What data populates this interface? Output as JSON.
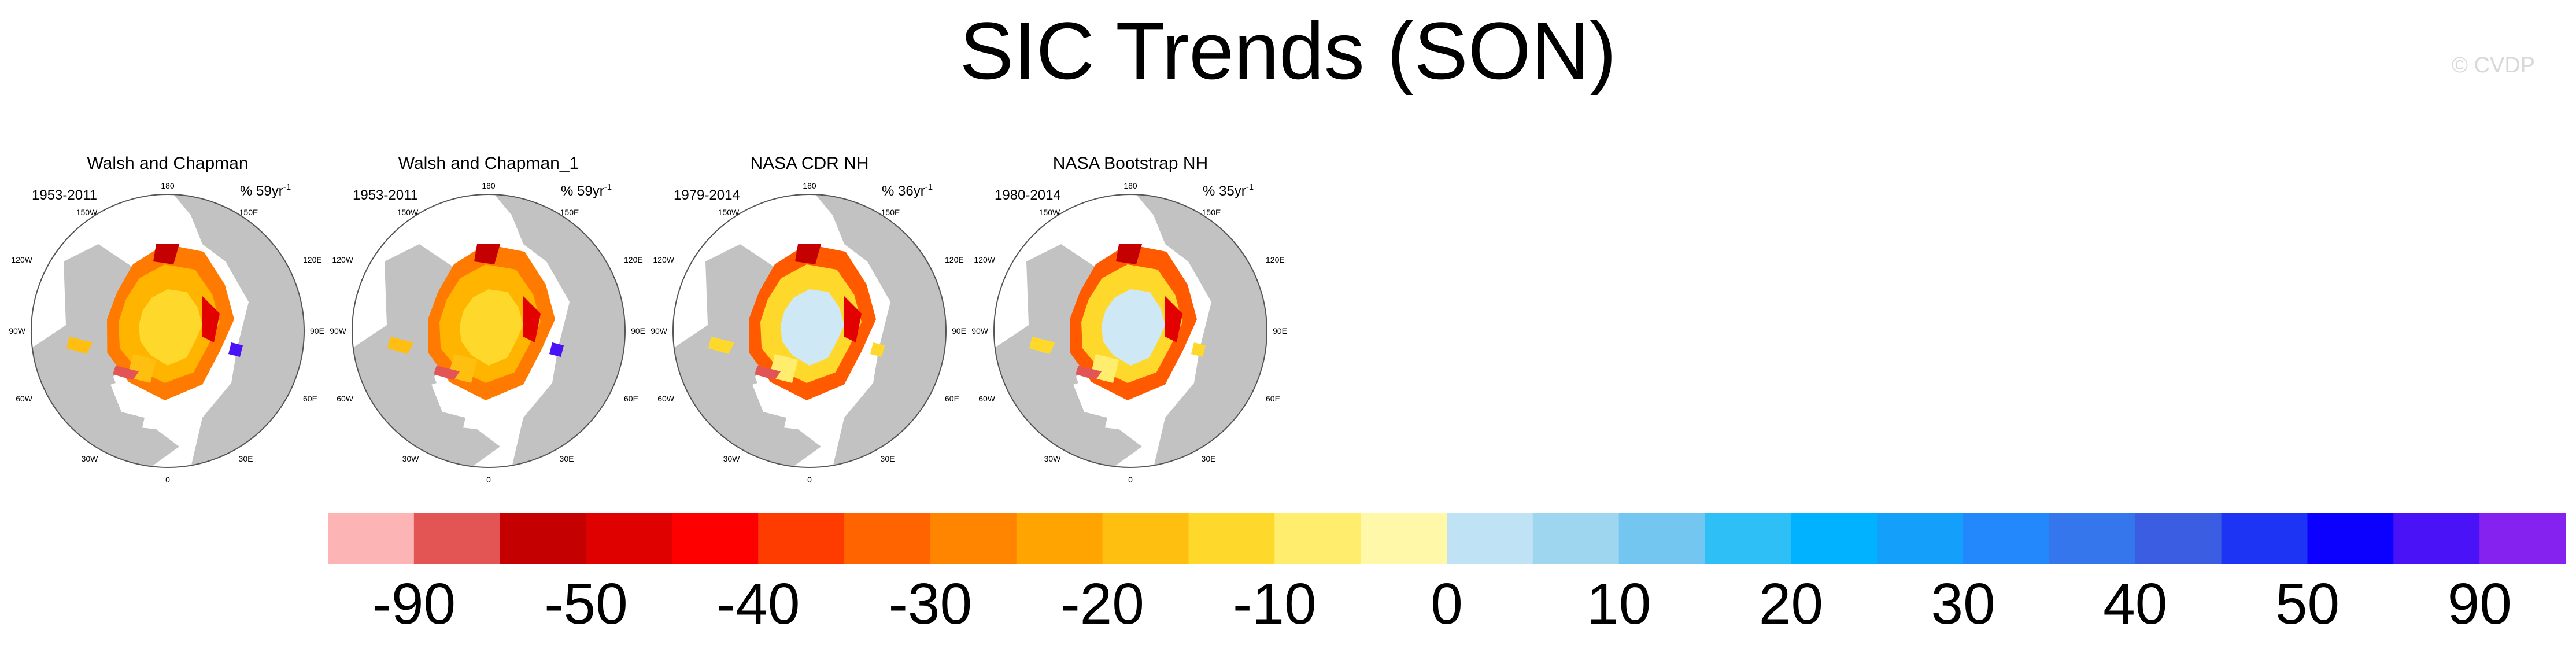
{
  "title": "SIC Trends (SON)",
  "credit": "© CVDP",
  "chart_data": [
    {
      "type": "heatmap",
      "title": "Walsh and Chapman",
      "period": "1953-2011",
      "units": "% 59yr",
      "units_exp": "-1"
    },
    {
      "type": "heatmap",
      "title": "Walsh and Chapman_1",
      "period": "1953-2011",
      "units": "% 59yr",
      "units_exp": "-1"
    },
    {
      "type": "heatmap",
      "title": "NASA CDR NH",
      "period": "1979-2014",
      "units": "% 36yr",
      "units_exp": "-1"
    },
    {
      "type": "heatmap",
      "title": "NASA Bootstrap NH",
      "period": "1980-2014",
      "units": "% 35yr",
      "units_exp": "-1"
    }
  ],
  "map_labels": {
    "top": "180",
    "bottom": "0",
    "left": "90W",
    "right": "90E",
    "ul_inner": "150W",
    "ur_inner": "150E",
    "ul_outer": "120W",
    "ur_outer": "120E",
    "ll_outer": "60W",
    "lr_outer": "60E",
    "ll_inner": "30W",
    "lr_inner": "30E"
  },
  "colorbar": {
    "colors": [
      "#fdb4b4",
      "#e35555",
      "#c40000",
      "#df0000",
      "#ff0000",
      "#ff3c00",
      "#ff6400",
      "#ff8400",
      "#ffa400",
      "#ffbf10",
      "#ffd82c",
      "#ffee6e",
      "#fff8a8",
      "#bfe3f5",
      "#9ed5ef",
      "#72c6f0",
      "#2ebff7",
      "#00b2ff",
      "#139ffa",
      "#2288fc",
      "#3576ec",
      "#3a5de2",
      "#1e34f5",
      "#0c00ff",
      "#4a12f7",
      "#8622ef"
    ],
    "ticks": [
      "-90",
      "-50",
      "-40",
      "-30",
      "-20",
      "-10",
      "0",
      "10",
      "20",
      "30",
      "40",
      "50",
      "90"
    ]
  }
}
